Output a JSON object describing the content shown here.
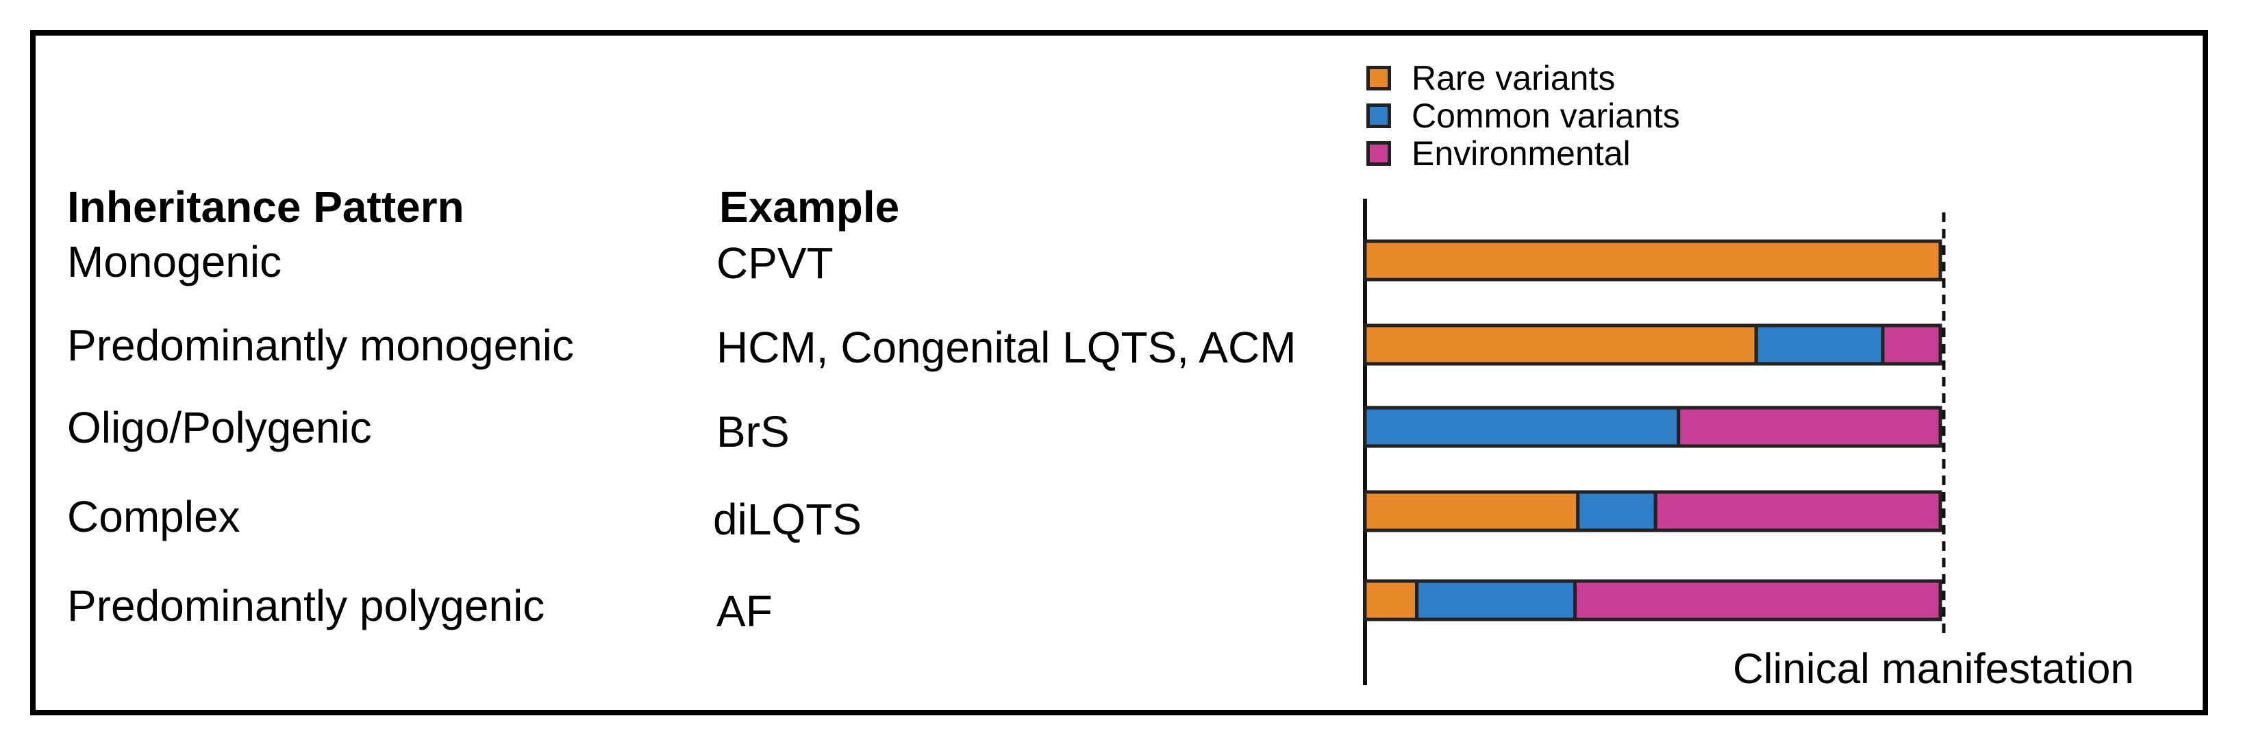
{
  "headers": {
    "pattern": "Inheritance Pattern",
    "example": "Example"
  },
  "legend": [
    {
      "label": "Rare variants",
      "color": "#E8892B"
    },
    {
      "label": "Common variants",
      "color": "#2F7FC8"
    },
    {
      "label": "Environmental",
      "color": "#C93F96"
    }
  ],
  "rows": [
    {
      "pattern": "Monogenic",
      "example": "CPVT",
      "fractions": [
        1.0,
        0.0,
        0.0
      ]
    },
    {
      "pattern": "Predominantly monogenic",
      "example": "HCM, Congenital LQTS, ACM",
      "fractions": [
        0.68,
        0.22,
        0.1
      ]
    },
    {
      "pattern": "Oligo/Polygenic",
      "example": "BrS",
      "fractions": [
        0.0,
        0.545,
        0.455
      ]
    },
    {
      "pattern": "Complex",
      "example": "diLQTS",
      "fractions": [
        0.37,
        0.135,
        0.495
      ]
    },
    {
      "pattern": "Predominantly polygenic",
      "example": "AF",
      "fractions": [
        0.09,
        0.275,
        0.635
      ]
    }
  ],
  "axis_label": "Clinical manifestation"
}
